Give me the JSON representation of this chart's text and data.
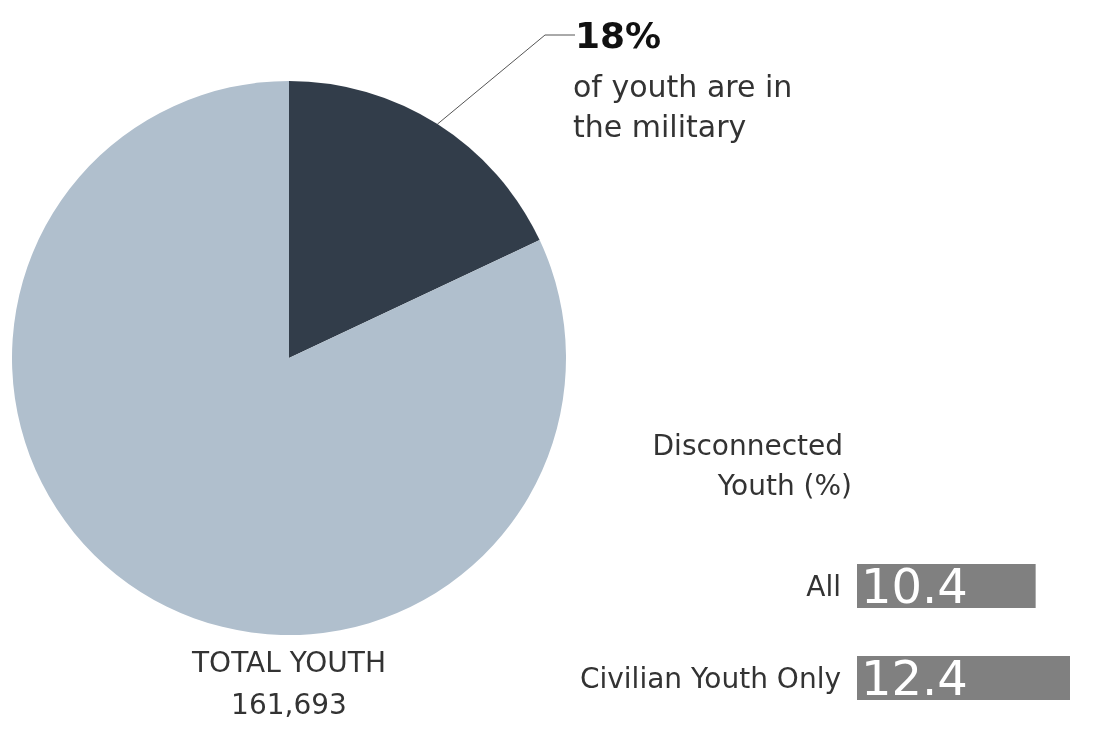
{
  "chart_data": [
    {
      "type": "pie",
      "categories": [
        null,
        null
      ],
      "values": [
        18,
        82
      ],
      "colors": [
        "#323d4a",
        "#b0bfcd"
      ],
      "value_labels": [
        "18%",
        null
      ],
      "annotations": [
        "of youth are in the military",
        "TOTAL YOUTH",
        "161,693"
      ]
    },
    {
      "type": "bar",
      "orientation": "horizontal",
      "title": "Disconnected Youth (%)",
      "categories": [
        "All",
        "Civilian Youth Only"
      ],
      "values": [
        10.4,
        12.4
      ],
      "color": "#808080",
      "data_labels": true
    }
  ]
}
